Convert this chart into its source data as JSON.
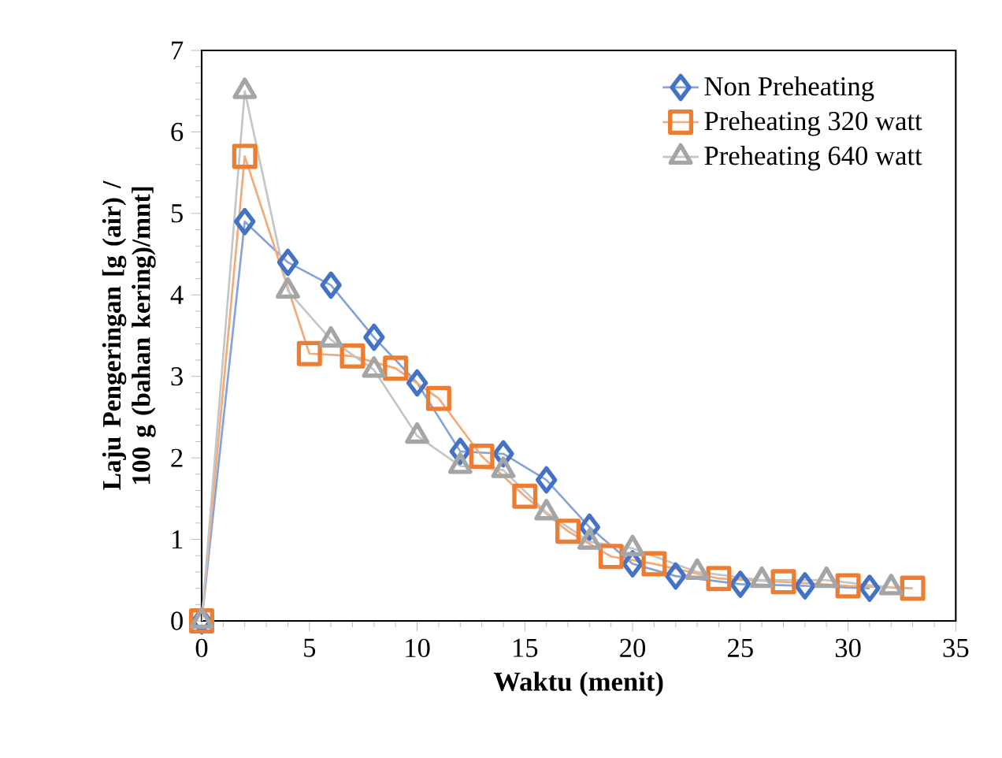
{
  "chart_data": {
    "type": "line",
    "xlabel": "Waktu (menit)",
    "ylabel": "Laju Pengeringan [g (air) / 100 g (bahan kering)/mnt]",
    "xlim": [
      0,
      35
    ],
    "xticks": [
      0,
      5,
      10,
      15,
      20,
      25,
      30,
      35
    ],
    "ylim": [
      0,
      7
    ],
    "yticks": [
      0,
      1,
      2,
      3,
      4,
      5,
      6,
      7
    ],
    "grid": false,
    "legend": "top right",
    "series": [
      {
        "name": "Non Preheating",
        "color": "#4472c4",
        "marker": "diamond",
        "x": [
          0,
          2,
          4,
          6,
          8,
          10,
          12,
          14,
          16,
          18,
          20,
          22,
          25,
          28,
          31
        ],
        "values": [
          0,
          4.9,
          4.4,
          4.12,
          3.48,
          2.92,
          2.08,
          2.05,
          1.73,
          1.15,
          0.7,
          0.55,
          0.45,
          0.43,
          0.4
        ]
      },
      {
        "name": "Preheating 320 watt",
        "color": "#ed7d31",
        "marker": "square",
        "x": [
          0,
          2,
          5,
          7,
          9,
          11,
          13,
          15,
          17,
          19,
          21,
          24,
          27,
          30,
          33
        ],
        "values": [
          0,
          5.7,
          3.28,
          3.25,
          3.1,
          2.73,
          2.02,
          1.53,
          1.1,
          0.79,
          0.7,
          0.52,
          0.48,
          0.43,
          0.4
        ]
      },
      {
        "name": "Preheating 640 watt",
        "color": "#a5a5a5",
        "marker": "triangle",
        "x": [
          0,
          2,
          4,
          6,
          8,
          10,
          12,
          14,
          16,
          18,
          20,
          23,
          26,
          29,
          32
        ],
        "values": [
          0,
          6.5,
          4.05,
          3.45,
          3.08,
          2.27,
          1.9,
          1.85,
          1.33,
          0.97,
          0.89,
          0.6,
          0.5,
          0.5,
          0.41
        ]
      }
    ]
  }
}
